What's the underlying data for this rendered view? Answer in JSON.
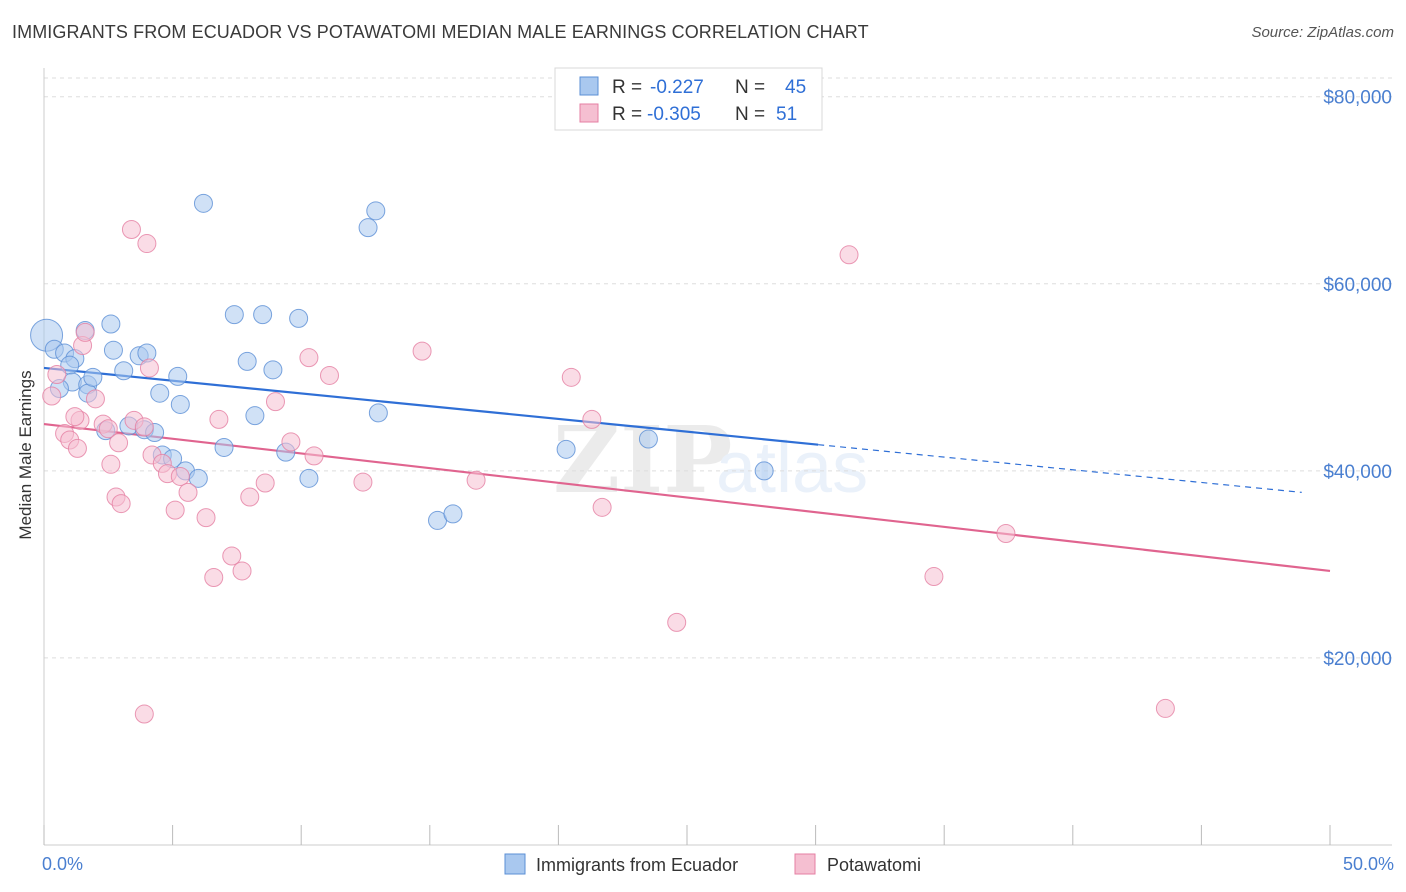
{
  "header": {
    "title": "IMMIGRANTS FROM ECUADOR VS POTAWATOMI MEDIAN MALE EARNINGS CORRELATION CHART",
    "source": "Source: ZipAtlas.com"
  },
  "watermark": {
    "zip": "ZIP",
    "atlas": "atlas"
  },
  "colors": {
    "blue_fill": "#a9c8ef",
    "blue_stroke": "#5b8fd6",
    "blue_line": "#2f6fd6",
    "pink_fill": "#f5bfd1",
    "pink_stroke": "#e57fa3",
    "pink_line": "#e0648f",
    "grid": "#dddddd",
    "tick_label": "#4a7fd0"
  },
  "legend": {
    "rows": [
      {
        "r_label": "R =",
        "r_value": "-0.227",
        "n_label": "N =",
        "n_value": "45",
        "series": "blue"
      },
      {
        "r_label": "R =",
        "r_value": "-0.305",
        "n_label": "N =",
        "n_value": "51",
        "series": "pink"
      }
    ]
  },
  "chart_data": {
    "type": "scatter",
    "title": "IMMIGRANTS FROM ECUADOR VS POTAWATOMI MEDIAN MALE EARNINGS CORRELATION CHART",
    "xlabel": "",
    "ylabel": "Median Male Earnings",
    "xlim": [
      0,
      50
    ],
    "ylim": [
      0,
      82000
    ],
    "x_tick_labels": [
      "0.0%",
      "50.0%"
    ],
    "y_ticks": [
      {
        "value": 20000,
        "label": "$20,000"
      },
      {
        "value": 40000,
        "label": "$40,000"
      },
      {
        "value": 60000,
        "label": "$60,000"
      },
      {
        "value": 80000,
        "label": "$80,000"
      }
    ],
    "series": [
      {
        "name": "Immigrants from Ecuador",
        "color": "blue",
        "r": -0.227,
        "n": 45,
        "trend": {
          "x0": 0,
          "y0": 51000,
          "x1": 30.1,
          "y1": 42800,
          "dash_to_x": 48.9,
          "dash_to_y": 37700
        },
        "points": [
          [
            0.1,
            54500
          ],
          [
            0.4,
            53000
          ],
          [
            0.8,
            52600
          ],
          [
            1.2,
            52000
          ],
          [
            1.0,
            51300
          ],
          [
            1.6,
            55000
          ],
          [
            1.1,
            49500
          ],
          [
            1.7,
            49200
          ],
          [
            1.7,
            48300
          ],
          [
            1.9,
            50000
          ],
          [
            2.6,
            55700
          ],
          [
            2.7,
            52900
          ],
          [
            3.1,
            50700
          ],
          [
            3.7,
            52300
          ],
          [
            4.0,
            52600
          ],
          [
            4.5,
            48300
          ],
          [
            5.2,
            50100
          ],
          [
            5.3,
            47100
          ],
          [
            3.3,
            44800
          ],
          [
            3.9,
            44400
          ],
          [
            4.3,
            44100
          ],
          [
            4.6,
            41700
          ],
          [
            5.0,
            41300
          ],
          [
            5.5,
            40000
          ],
          [
            6.2,
            68600
          ],
          [
            7.4,
            56700
          ],
          [
            7.9,
            51700
          ],
          [
            8.2,
            45900
          ],
          [
            8.5,
            56700
          ],
          [
            8.9,
            50800
          ],
          [
            9.4,
            42000
          ],
          [
            9.9,
            56300
          ],
          [
            10.3,
            39200
          ],
          [
            12.6,
            66000
          ],
          [
            12.9,
            67800
          ],
          [
            13.0,
            46200
          ],
          [
            15.3,
            34700
          ],
          [
            15.9,
            35400
          ],
          [
            20.3,
            42300
          ],
          [
            23.5,
            43400
          ],
          [
            28.0,
            40000
          ],
          [
            6.0,
            39200
          ],
          [
            2.4,
            44300
          ],
          [
            7.0,
            42500
          ],
          [
            0.6,
            48800
          ]
        ]
      },
      {
        "name": "Potawatomi",
        "color": "pink",
        "r": -0.305,
        "n": 51,
        "trend": {
          "x0": 0,
          "y0": 45000,
          "x1": 50,
          "y1": 29300
        },
        "points": [
          [
            0.3,
            48000
          ],
          [
            0.5,
            50300
          ],
          [
            0.8,
            44000
          ],
          [
            1.0,
            43300
          ],
          [
            1.5,
            53400
          ],
          [
            1.6,
            54800
          ],
          [
            1.4,
            45400
          ],
          [
            2.0,
            47700
          ],
          [
            2.3,
            45000
          ],
          [
            2.5,
            44500
          ],
          [
            2.9,
            43000
          ],
          [
            1.3,
            42400
          ],
          [
            2.6,
            40700
          ],
          [
            2.8,
            37200
          ],
          [
            3.0,
            36500
          ],
          [
            3.5,
            45400
          ],
          [
            3.9,
            44700
          ],
          [
            4.2,
            41700
          ],
          [
            4.6,
            40800
          ],
          [
            4.8,
            39700
          ],
          [
            5.3,
            39400
          ],
          [
            5.6,
            37700
          ],
          [
            6.3,
            35000
          ],
          [
            3.4,
            65800
          ],
          [
            4.0,
            64300
          ],
          [
            4.1,
            51000
          ],
          [
            5.1,
            35800
          ],
          [
            6.8,
            45500
          ],
          [
            7.3,
            30900
          ],
          [
            7.7,
            29300
          ],
          [
            8.0,
            37200
          ],
          [
            8.6,
            38700
          ],
          [
            9.0,
            47400
          ],
          [
            9.6,
            43100
          ],
          [
            10.3,
            52100
          ],
          [
            10.5,
            41600
          ],
          [
            11.1,
            50200
          ],
          [
            12.4,
            38800
          ],
          [
            14.7,
            52800
          ],
          [
            16.8,
            39000
          ],
          [
            20.5,
            50000
          ],
          [
            21.3,
            45500
          ],
          [
            21.7,
            36100
          ],
          [
            24.6,
            23800
          ],
          [
            31.3,
            63100
          ],
          [
            34.6,
            28700
          ],
          [
            37.4,
            33300
          ],
          [
            43.6,
            14600
          ],
          [
            3.9,
            14000
          ],
          [
            6.6,
            28600
          ],
          [
            1.2,
            45800
          ]
        ]
      }
    ]
  },
  "bottom_legend": {
    "items": [
      {
        "label": "Immigrants from Ecuador",
        "series": "blue"
      },
      {
        "label": "Potawatomi",
        "series": "pink"
      }
    ]
  }
}
